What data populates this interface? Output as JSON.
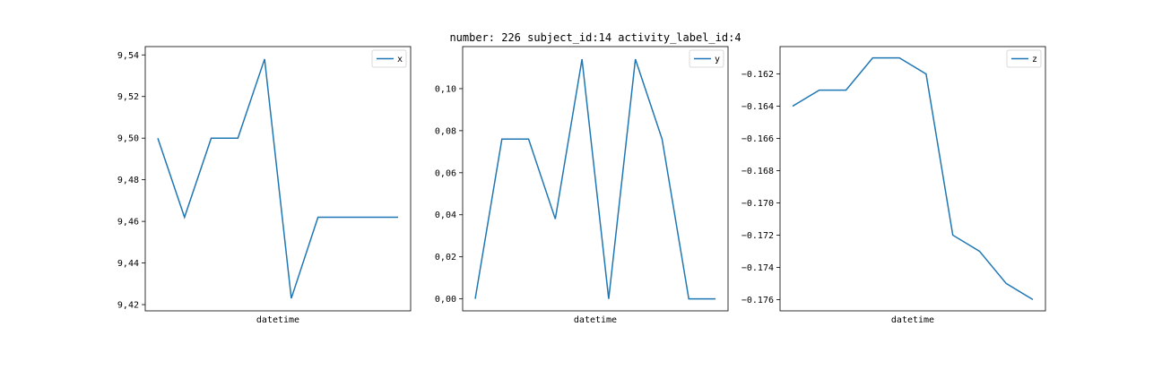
{
  "figure": {
    "title": "number: 226 subject_id:14 activity_label_id:4"
  },
  "chart_data": [
    {
      "type": "line",
      "xlabel": "datetime",
      "ylabel": "",
      "legend": "top-right",
      "grid": false,
      "x_ticks_shown": false,
      "ylim": [
        9.417,
        9.544
      ],
      "yticks": [
        9.42,
        9.44,
        9.46,
        9.48,
        9.5,
        9.52,
        9.54
      ],
      "ytick_labels": [
        "9,42",
        "9,44",
        "9,46",
        "9,48",
        "9,50",
        "9,52",
        "9,54"
      ],
      "series": [
        {
          "name": "x",
          "color": "#1f77b4",
          "values": [
            9.5,
            9.462,
            9.5,
            9.5,
            9.538,
            9.423,
            9.462,
            9.462,
            9.462,
            9.462
          ]
        }
      ]
    },
    {
      "type": "line",
      "xlabel": "datetime",
      "ylabel": "",
      "legend": "top-right",
      "grid": false,
      "x_ticks_shown": false,
      "ylim": [
        -0.0057,
        0.12
      ],
      "yticks": [
        0.0,
        0.02,
        0.04,
        0.06,
        0.08,
        0.1
      ],
      "ytick_labels": [
        "0,00",
        "0,02",
        "0,04",
        "0,06",
        "0,08",
        "0,10"
      ],
      "series": [
        {
          "name": "y",
          "color": "#1f77b4",
          "values": [
            0.0,
            0.076,
            0.076,
            0.038,
            0.114,
            0.0,
            0.114,
            0.076,
            0.0,
            0.0
          ]
        }
      ]
    },
    {
      "type": "line",
      "xlabel": "datetime",
      "ylabel": "",
      "legend": "top-right",
      "grid": false,
      "x_ticks_shown": false,
      "ylim": [
        -0.1767,
        -0.1603
      ],
      "yticks": [
        -0.176,
        -0.174,
        -0.172,
        -0.17,
        -0.168,
        -0.166,
        -0.164,
        -0.162
      ],
      "ytick_labels": [
        "−0.176",
        "−0.174",
        "−0.172",
        "−0.170",
        "−0.168",
        "−0.166",
        "−0.164",
        "−0.162"
      ],
      "series": [
        {
          "name": "z",
          "color": "#1f77b4",
          "values": [
            -0.164,
            -0.163,
            -0.163,
            -0.161,
            -0.161,
            -0.162,
            -0.172,
            -0.173,
            -0.175,
            -0.176
          ]
        }
      ]
    }
  ]
}
